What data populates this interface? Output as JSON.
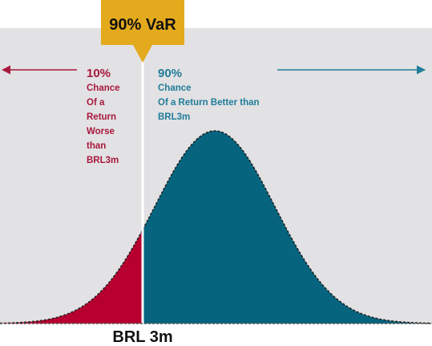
{
  "colors": {
    "background_panel": "#e2e1e3",
    "left_tail": "#b7002f",
    "right_area": "#06647e",
    "callout": "#e4aa1d",
    "divider": "#ffffff",
    "curve_outline": "#222222",
    "baseline": "#555555",
    "left_text": "#a8193d",
    "right_text": "#1f7d9a",
    "axis_text": "#111111"
  },
  "callout": {
    "label": "90% VaR"
  },
  "left_annotation": {
    "percent": "10%",
    "lines": [
      "Chance",
      "Of a",
      "Return",
      "Worse",
      "than",
      "BRL3m"
    ]
  },
  "right_annotation": {
    "percent": "90%",
    "lines": [
      "Chance",
      "Of a Return Better than",
      "BRL3m"
    ]
  },
  "axis_label": "BRL 3m",
  "split_fraction": 0.1
}
